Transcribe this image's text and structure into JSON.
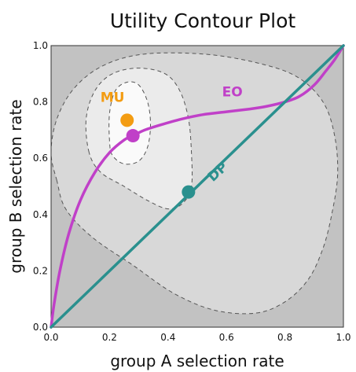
{
  "chart_data": {
    "type": "line",
    "title": "Utility Contour Plot",
    "xlabel": "group A selection rate",
    "ylabel": "group B selection rate",
    "xlim": [
      0,
      1
    ],
    "ylim": [
      0,
      1
    ],
    "x_ticks": [
      "0.0",
      "0.2",
      "0.4",
      "0.6",
      "0.8",
      "1.0"
    ],
    "y_ticks": [
      "0.0",
      "0.2",
      "0.4",
      "0.6",
      "0.8",
      "1.0"
    ],
    "grid": false,
    "background_regions": [
      {
        "fill": "#c2c2c2",
        "points": [
          [
            0,
            0
          ],
          [
            1,
            0
          ],
          [
            1,
            1
          ],
          [
            0,
            1
          ]
        ]
      },
      {
        "fill": "#d8d8d8",
        "points": [
          [
            0.02,
            0.52
          ],
          [
            0.0,
            0.62
          ],
          [
            0.02,
            0.74
          ],
          [
            0.08,
            0.85
          ],
          [
            0.18,
            0.93
          ],
          [
            0.32,
            0.97
          ],
          [
            0.52,
            0.97
          ],
          [
            0.7,
            0.94
          ],
          [
            0.84,
            0.89
          ],
          [
            0.93,
            0.8
          ],
          [
            0.97,
            0.68
          ],
          [
            0.98,
            0.54
          ],
          [
            0.96,
            0.4
          ],
          [
            0.93,
            0.28
          ],
          [
            0.88,
            0.17
          ],
          [
            0.8,
            0.09
          ],
          [
            0.7,
            0.05
          ],
          [
            0.56,
            0.06
          ],
          [
            0.42,
            0.12
          ],
          [
            0.28,
            0.22
          ],
          [
            0.14,
            0.32
          ],
          [
            0.05,
            0.42
          ]
        ]
      },
      {
        "fill": "#ebebeb",
        "points": [
          [
            0.13,
            0.62
          ],
          [
            0.12,
            0.74
          ],
          [
            0.15,
            0.84
          ],
          [
            0.21,
            0.9
          ],
          [
            0.3,
            0.92
          ],
          [
            0.39,
            0.9
          ],
          [
            0.44,
            0.84
          ],
          [
            0.47,
            0.74
          ],
          [
            0.48,
            0.62
          ],
          [
            0.48,
            0.5
          ],
          [
            0.45,
            0.44
          ],
          [
            0.4,
            0.42
          ],
          [
            0.33,
            0.45
          ],
          [
            0.25,
            0.5
          ],
          [
            0.17,
            0.55
          ]
        ]
      },
      {
        "fill": "#fafafa",
        "points": [
          [
            0.2,
            0.66
          ],
          [
            0.2,
            0.76
          ],
          [
            0.22,
            0.84
          ],
          [
            0.26,
            0.87
          ],
          [
            0.3,
            0.86
          ],
          [
            0.33,
            0.8
          ],
          [
            0.34,
            0.72
          ],
          [
            0.33,
            0.64
          ],
          [
            0.3,
            0.59
          ],
          [
            0.25,
            0.58
          ],
          [
            0.21,
            0.61
          ]
        ]
      }
    ],
    "series": [
      {
        "name": "EO",
        "color": "#c040c8",
        "x": [
          0,
          0.01,
          0.03,
          0.06,
          0.1,
          0.15,
          0.2,
          0.25,
          0.28,
          0.32,
          0.38,
          0.45,
          0.52,
          0.6,
          0.68,
          0.74,
          0.8,
          0.85,
          0.9,
          0.94,
          0.97,
          1.0
        ],
        "y": [
          0,
          0.08,
          0.2,
          0.33,
          0.45,
          0.55,
          0.62,
          0.665,
          0.68,
          0.7,
          0.72,
          0.74,
          0.755,
          0.765,
          0.775,
          0.785,
          0.8,
          0.82,
          0.86,
          0.91,
          0.95,
          1.0
        ]
      },
      {
        "name": "DP",
        "color": "#2a908e",
        "x": [
          0,
          1
        ],
        "y": [
          0,
          1
        ]
      }
    ],
    "points": [
      {
        "name": "MU",
        "x": 0.26,
        "y": 0.735,
        "color": "#f39c12"
      },
      {
        "name": "eo-point",
        "x": 0.28,
        "y": 0.68,
        "color": "#c040c8"
      },
      {
        "name": "dp-point",
        "x": 0.47,
        "y": 0.48,
        "color": "#2a908e"
      }
    ],
    "annotations": [
      {
        "text": "MU",
        "x": 0.21,
        "y": 0.8,
        "color": "#f39c12",
        "rotate": 0
      },
      {
        "text": "EO",
        "x": 0.62,
        "y": 0.82,
        "color": "#c040c8",
        "rotate": 0
      },
      {
        "text": "DP",
        "x": 0.58,
        "y": 0.54,
        "color": "#2a908e",
        "rotate": -42
      }
    ]
  }
}
